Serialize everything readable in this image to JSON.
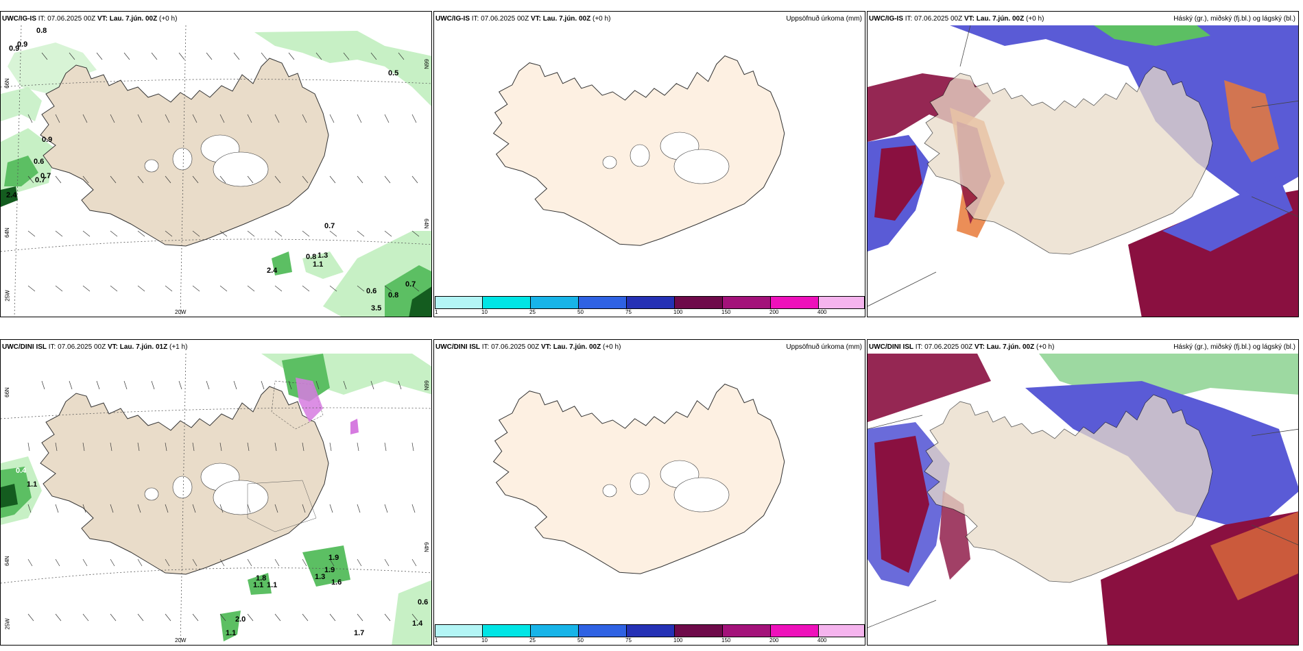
{
  "panels": [
    {
      "model": "UWC/IG-IS",
      "it": "IT: 07.06.2025 00Z",
      "vt_label": "VT:",
      "vt": "Lau. 7.jún. 00Z",
      "lead": "(+0 h)",
      "rtitle": ""
    },
    {
      "model": "UWC/IG-IS",
      "it": "IT: 07.06.2025 00Z",
      "vt_label": "VT:",
      "vt": "Lau. 7.jún. 00Z",
      "lead": "(+0 h)",
      "rtitle": "Uppsöfnuð úrkoma (mm)"
    },
    {
      "model": "UWC/IG-IS",
      "it": "IT: 07.06.2025 00Z",
      "vt_label": "VT:",
      "vt": "Lau. 7.jún. 00Z",
      "lead": "(+0 h)",
      "rtitle": "Háský (gr.), miðský (fj.bl.) og lágský (bl.)"
    },
    {
      "model": "UWC/DINI ISL",
      "it": "IT: 07.06.2025 00Z",
      "vt_label": "VT:",
      "vt": "Lau. 7.jún. 01Z",
      "lead": "(+1 h)",
      "rtitle": ""
    },
    {
      "model": "UWC/DINI ISL",
      "it": "IT: 07.06.2025 00Z",
      "vt_label": "VT:",
      "vt": "Lau. 7.jún. 00Z",
      "lead": "(+0 h)",
      "rtitle": "Uppsöfnuð úrkoma (mm)"
    },
    {
      "model": "UWC/DINI ISL",
      "it": "IT: 07.06.2025 00Z",
      "vt_label": "VT:",
      "vt": "Lau. 7.jún. 00Z",
      "lead": "(+0 h)",
      "rtitle": "Háský (gr.), miðský (fj.bl.) og lágský (bl.)"
    }
  ],
  "colorbar": {
    "labels": [
      "1",
      "10",
      "25",
      "50",
      "75",
      "100",
      "150",
      "200",
      "400"
    ],
    "colors": [
      "#b3f5f5",
      "#00e5e5",
      "#18b4e8",
      "#2f62e3",
      "#2531b5",
      "#6e0a4a",
      "#a3127a",
      "#ee11bb",
      "#f5b4ee"
    ]
  },
  "axis_labels": {
    "lat66": "66N",
    "lat64": "64N",
    "lon25": "25W",
    "lon20": "20W"
  },
  "top_left_values": [
    "0.8",
    "0.9",
    "0.9",
    "0.9",
    "0.6",
    "0.7",
    "0.7",
    "2.4",
    "0.5",
    "0.7",
    "0.8",
    "1.3",
    "1.1",
    "2.4",
    "0.6",
    "0.8",
    "0.7",
    "3.5"
  ],
  "bottom_left_values": [
    "0.4",
    "1.1",
    "0.6",
    "1.8",
    "1.1",
    "1.1",
    "1.3",
    "1.9",
    "1.9",
    "1.6",
    "2.0",
    "1.1",
    "1.4",
    "1.7"
  ],
  "colors": {
    "land": "#e9dcc9",
    "land_light": "#fdf0e2",
    "green_light": "#c7f0c5",
    "green": "#5cbf63",
    "green_dark": "#145c1f",
    "maroon": "#8a1040",
    "blue": "#5a5bd6",
    "orange": "#e77a3a"
  }
}
